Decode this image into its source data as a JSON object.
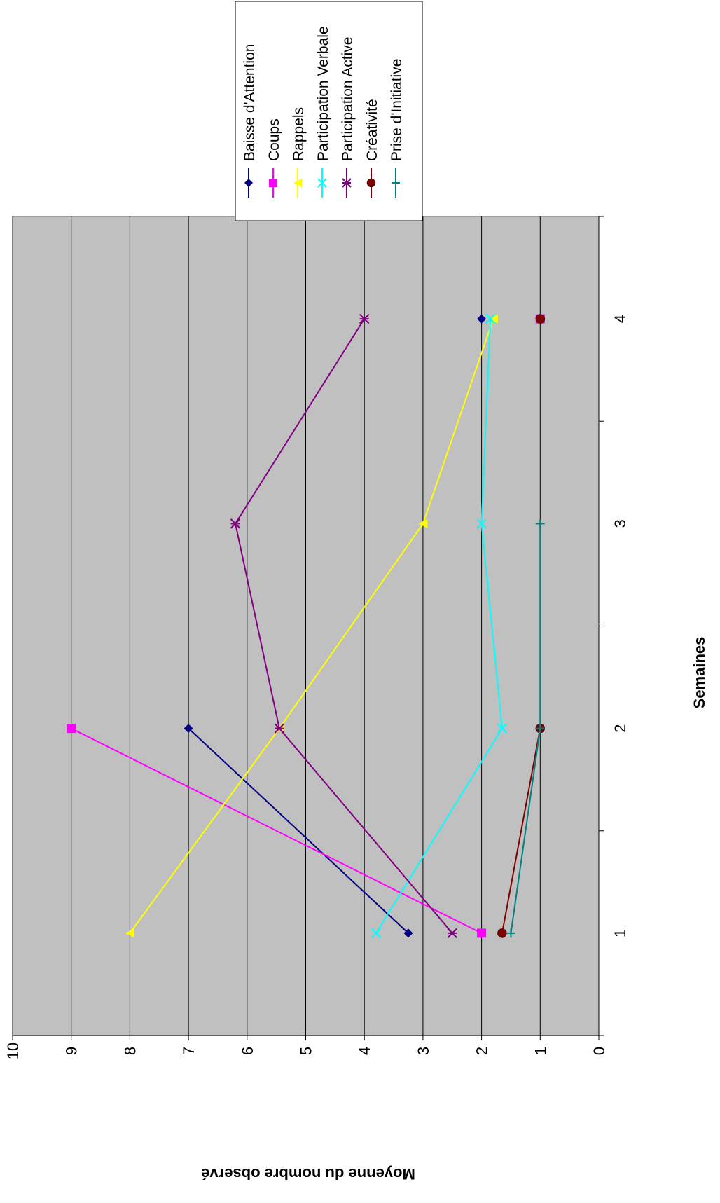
{
  "chart_data": {
    "type": "line",
    "orientation": "rotated-90-counterclockwise",
    "xlabel": "Semaines",
    "ylabel": "Moyenne du nombre observé",
    "x": [
      1,
      2,
      3,
      4
    ],
    "x_tick_labels": [
      "1",
      "2",
      "3",
      "4"
    ],
    "ylim": [
      0,
      10
    ],
    "y_ticks": [
      0,
      1,
      2,
      3,
      4,
      5,
      6,
      7,
      8,
      9,
      10
    ],
    "y_tick_labels": [
      "0",
      "1",
      "2",
      "3",
      "4",
      "5",
      "6",
      "7",
      "8",
      "9",
      "10"
    ],
    "grid": "horizontal major gridlines",
    "plot_background": "#c0c0c0",
    "legend_position": "right",
    "series": [
      {
        "name": "Baisse d'Attention",
        "color": "#000080",
        "marker": "diamond",
        "values": [
          3.25,
          7,
          null,
          2
        ]
      },
      {
        "name": "Coups",
        "color": "#ff00ff",
        "marker": "square",
        "values": [
          2,
          9,
          null,
          1
        ]
      },
      {
        "name": "Rappels",
        "color": "#ffff00",
        "marker": "triangle",
        "values": [
          8,
          5.45,
          3,
          1.8
        ]
      },
      {
        "name": "Participation Verbale",
        "color": "#00ffff",
        "marker": "x",
        "values": [
          3.8,
          1.65,
          2,
          1.85
        ]
      },
      {
        "name": "Participation Active",
        "color": "#800080",
        "marker": "star",
        "values": [
          2.5,
          5.45,
          6.2,
          4
        ]
      },
      {
        "name": "Créativité",
        "color": "#800000",
        "marker": "circle",
        "values": [
          1.65,
          1,
          null,
          1
        ]
      },
      {
        "name": "Prise d'Initiative",
        "color": "#008080",
        "marker": "plus",
        "values": [
          1.5,
          1,
          1,
          null
        ]
      }
    ]
  }
}
